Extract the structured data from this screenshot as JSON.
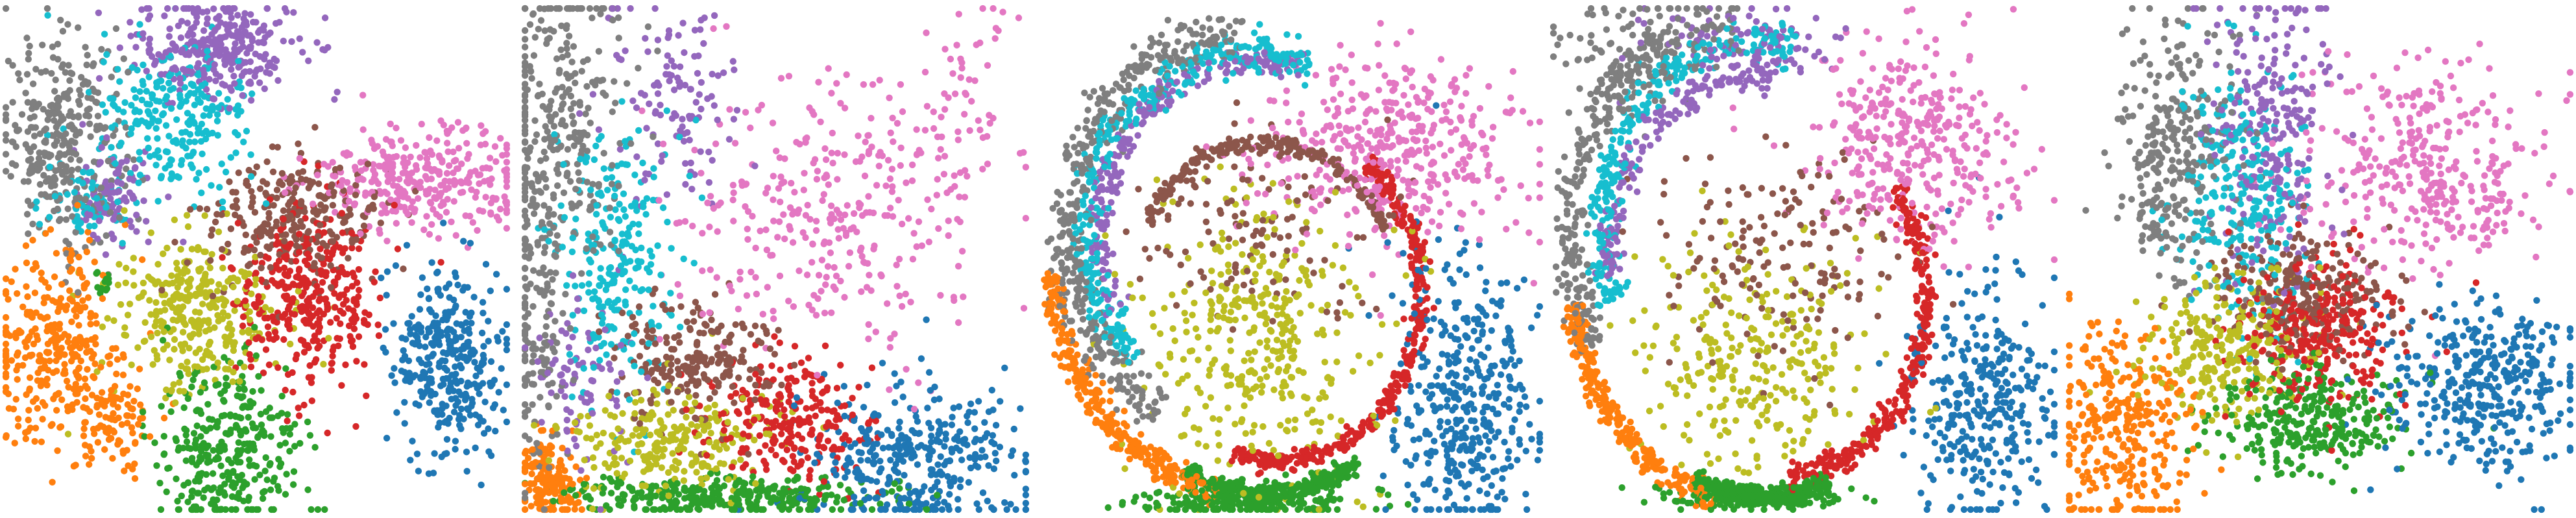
{
  "figure": {
    "panel_count": 5
  },
  "palette": {
    "c0": "#1f77b4",
    "c1": "#ff7f0e",
    "c2": "#2ca02c",
    "c3": "#d62728",
    "c4": "#9467bd",
    "c5": "#8c564b",
    "c6": "#e377c2",
    "c7": "#7f7f7f",
    "c8": "#bcbd22",
    "c9": "#17becf"
  },
  "chart_data": [
    {
      "type": "scatter",
      "xlim": [
        0,
        1
      ],
      "ylim": [
        0,
        1
      ],
      "axes_visible": false,
      "grid": false,
      "legend": "none",
      "clusters": [
        {
          "color": "c7",
          "cx": 0.12,
          "cy": 0.74,
          "sx": 0.06,
          "sy": 0.1,
          "n": 320
        },
        {
          "color": "c4",
          "cx": 0.42,
          "cy": 0.92,
          "sx": 0.08,
          "sy": 0.05,
          "n": 300
        },
        {
          "color": "c9",
          "cx": 0.34,
          "cy": 0.77,
          "sx": 0.08,
          "sy": 0.08,
          "n": 260
        },
        {
          "color": "c4",
          "cx": 0.22,
          "cy": 0.62,
          "sx": 0.04,
          "sy": 0.05,
          "n": 90
        },
        {
          "color": "c9",
          "cx": 0.16,
          "cy": 0.61,
          "sx": 0.04,
          "sy": 0.03,
          "n": 60
        },
        {
          "color": "c6",
          "cx": 0.83,
          "cy": 0.66,
          "sx": 0.11,
          "sy": 0.05,
          "n": 320
        },
        {
          "color": "c5",
          "cx": 0.58,
          "cy": 0.58,
          "sx": 0.09,
          "sy": 0.06,
          "n": 260
        },
        {
          "color": "c3",
          "cx": 0.6,
          "cy": 0.43,
          "sx": 0.07,
          "sy": 0.09,
          "n": 350
        },
        {
          "color": "c8",
          "cx": 0.38,
          "cy": 0.4,
          "sx": 0.08,
          "sy": 0.08,
          "n": 320
        },
        {
          "color": "c1",
          "cx": 0.1,
          "cy": 0.32,
          "sx": 0.07,
          "sy": 0.1,
          "n": 320
        },
        {
          "color": "c1",
          "cx": 0.22,
          "cy": 0.17,
          "sx": 0.04,
          "sy": 0.05,
          "n": 90
        },
        {
          "color": "c2",
          "cx": 0.44,
          "cy": 0.13,
          "sx": 0.07,
          "sy": 0.08,
          "n": 330
        },
        {
          "color": "c0",
          "cx": 0.88,
          "cy": 0.3,
          "sx": 0.06,
          "sy": 0.09,
          "n": 330
        },
        {
          "color": "c2",
          "cx": 0.2,
          "cy": 0.45,
          "sx": 0.01,
          "sy": 0.02,
          "n": 15
        }
      ]
    },
    {
      "type": "scatter",
      "xlim": [
        0,
        1
      ],
      "ylim": [
        0,
        1
      ],
      "axes_visible": false,
      "grid": false,
      "legend": "none",
      "clusters": [
        {
          "color": "c7",
          "cx": 0.07,
          "cy": 0.78,
          "sx": 0.07,
          "sy": 0.16,
          "n": 280
        },
        {
          "color": "c7",
          "cx": 0.03,
          "cy": 0.4,
          "sx": 0.03,
          "sy": 0.15,
          "n": 150
        },
        {
          "color": "c4",
          "cx": 0.28,
          "cy": 0.82,
          "sx": 0.07,
          "sy": 0.1,
          "n": 120
        },
        {
          "color": "c9",
          "cx": 0.18,
          "cy": 0.5,
          "sx": 0.06,
          "sy": 0.13,
          "n": 250
        },
        {
          "color": "c4",
          "cx": 0.12,
          "cy": 0.25,
          "sx": 0.05,
          "sy": 0.08,
          "n": 80
        },
        {
          "color": "c6",
          "cx": 0.62,
          "cy": 0.58,
          "sx": 0.16,
          "sy": 0.14,
          "n": 320
        },
        {
          "color": "c6",
          "cx": 0.85,
          "cy": 0.8,
          "sx": 0.06,
          "sy": 0.12,
          "n": 60
        },
        {
          "color": "c5",
          "cx": 0.33,
          "cy": 0.3,
          "sx": 0.08,
          "sy": 0.06,
          "n": 220
        },
        {
          "color": "c3",
          "cx": 0.52,
          "cy": 0.18,
          "sx": 0.08,
          "sy": 0.06,
          "n": 260
        },
        {
          "color": "c8",
          "cx": 0.3,
          "cy": 0.15,
          "sx": 0.1,
          "sy": 0.05,
          "n": 250
        },
        {
          "color": "c1",
          "cx": 0.05,
          "cy": 0.06,
          "sx": 0.03,
          "sy": 0.04,
          "n": 160
        },
        {
          "color": "c2",
          "cx": 0.4,
          "cy": 0.03,
          "sx": 0.16,
          "sy": 0.02,
          "n": 330
        },
        {
          "color": "c0",
          "cx": 0.78,
          "cy": 0.1,
          "sx": 0.11,
          "sy": 0.07,
          "n": 340
        }
      ]
    },
    {
      "type": "scatter",
      "xlim": [
        0,
        1
      ],
      "ylim": [
        0,
        1
      ],
      "axes_visible": false,
      "grid": false,
      "legend": "none",
      "rings": [
        {
          "color": "c7",
          "cx": 0.42,
          "cy": 0.55,
          "rx": 0.36,
          "ry": 0.4,
          "a0": 1.6,
          "a1": 4.2,
          "w": 0.06,
          "n": 420
        },
        {
          "color": "c9",
          "cx": 0.43,
          "cy": 0.55,
          "rx": 0.33,
          "ry": 0.36,
          "a0": 1.2,
          "a1": 3.9,
          "w": 0.05,
          "n": 360
        },
        {
          "color": "c4",
          "cx": 0.44,
          "cy": 0.55,
          "rx": 0.31,
          "ry": 0.34,
          "a0": 1.3,
          "a1": 3.6,
          "w": 0.04,
          "n": 200
        },
        {
          "color": "c5",
          "cx": 0.45,
          "cy": 0.45,
          "rx": 0.26,
          "ry": 0.28,
          "a0": 0.4,
          "a1": 2.7,
          "w": 0.03,
          "n": 220
        },
        {
          "color": "c3",
          "cx": 0.48,
          "cy": 0.43,
          "rx": 0.28,
          "ry": 0.33,
          "a0": -1.9,
          "a1": 0.9,
          "w": 0.03,
          "n": 380
        },
        {
          "color": "c1",
          "cx": 0.45,
          "cy": 0.5,
          "rx": 0.42,
          "ry": 0.47,
          "a0": 3.2,
          "a1": 4.5,
          "w": 0.03,
          "n": 300
        },
        {
          "color": "c2",
          "cx": 0.45,
          "cy": 0.5,
          "rx": 0.4,
          "ry": 0.46,
          "a0": 4.3,
          "a1": 5.2,
          "w": 0.02,
          "n": 330
        }
      ],
      "clusters": [
        {
          "color": "c8",
          "cx": 0.44,
          "cy": 0.35,
          "sx": 0.12,
          "sy": 0.14,
          "n": 380
        },
        {
          "color": "c5",
          "cx": 0.42,
          "cy": 0.55,
          "sx": 0.12,
          "sy": 0.1,
          "n": 120
        },
        {
          "color": "c6",
          "cx": 0.7,
          "cy": 0.72,
          "sx": 0.13,
          "sy": 0.09,
          "n": 420
        },
        {
          "color": "c0",
          "cx": 0.85,
          "cy": 0.22,
          "sx": 0.07,
          "sy": 0.14,
          "n": 400
        },
        {
          "color": "c2",
          "cx": 0.42,
          "cy": 0.02,
          "sx": 0.12,
          "sy": 0.015,
          "n": 200
        }
      ]
    },
    {
      "type": "scatter",
      "xlim": [
        0,
        1
      ],
      "ylim": [
        0,
        1
      ],
      "axes_visible": false,
      "grid": false,
      "legend": "none",
      "rings": [
        {
          "color": "c7",
          "cx": 0.38,
          "cy": 0.55,
          "rx": 0.34,
          "ry": 0.42,
          "a0": 1.6,
          "a1": 3.7,
          "w": 0.05,
          "n": 280
        },
        {
          "color": "c9",
          "cx": 0.4,
          "cy": 0.55,
          "rx": 0.3,
          "ry": 0.38,
          "a0": 1.3,
          "a1": 3.5,
          "w": 0.05,
          "n": 280
        },
        {
          "color": "c4",
          "cx": 0.4,
          "cy": 0.52,
          "rx": 0.28,
          "ry": 0.34,
          "a0": 1.4,
          "a1": 3.3,
          "w": 0.04,
          "n": 160
        },
        {
          "color": "c3",
          "cx": 0.48,
          "cy": 0.42,
          "rx": 0.26,
          "ry": 0.34,
          "a0": -1.6,
          "a1": 0.7,
          "w": 0.04,
          "n": 300
        },
        {
          "color": "c1",
          "cx": 0.4,
          "cy": 0.48,
          "rx": 0.36,
          "ry": 0.46,
          "a0": 3.3,
          "a1": 4.5,
          "w": 0.03,
          "n": 260
        },
        {
          "color": "c2",
          "cx": 0.42,
          "cy": 0.48,
          "rx": 0.34,
          "ry": 0.45,
          "a0": 4.3,
          "a1": 5.1,
          "w": 0.02,
          "n": 300
        }
      ],
      "clusters": [
        {
          "color": "c7",
          "cx": 0.16,
          "cy": 0.9,
          "sx": 0.08,
          "sy": 0.06,
          "n": 120
        },
        {
          "color": "c4",
          "cx": 0.4,
          "cy": 0.93,
          "sx": 0.1,
          "sy": 0.04,
          "n": 100
        },
        {
          "color": "c6",
          "cx": 0.72,
          "cy": 0.73,
          "sx": 0.1,
          "sy": 0.1,
          "n": 360
        },
        {
          "color": "c5",
          "cx": 0.46,
          "cy": 0.52,
          "sx": 0.12,
          "sy": 0.1,
          "n": 160
        },
        {
          "color": "c8",
          "cx": 0.4,
          "cy": 0.3,
          "sx": 0.12,
          "sy": 0.11,
          "n": 280
        },
        {
          "color": "c0",
          "cx": 0.86,
          "cy": 0.22,
          "sx": 0.07,
          "sy": 0.12,
          "n": 320
        },
        {
          "color": "c2",
          "cx": 0.38,
          "cy": 0.03,
          "sx": 0.09,
          "sy": 0.015,
          "n": 160
        }
      ]
    },
    {
      "type": "scatter",
      "xlim": [
        0,
        1
      ],
      "ylim": [
        0,
        1
      ],
      "axes_visible": false,
      "grid": false,
      "legend": "none",
      "clusters": [
        {
          "color": "c7",
          "cx": 0.21,
          "cy": 0.72,
          "sx": 0.06,
          "sy": 0.14,
          "n": 300
        },
        {
          "color": "c4",
          "cx": 0.4,
          "cy": 0.76,
          "sx": 0.06,
          "sy": 0.14,
          "n": 250
        },
        {
          "color": "c9",
          "cx": 0.34,
          "cy": 0.62,
          "sx": 0.06,
          "sy": 0.14,
          "n": 280
        },
        {
          "color": "c6",
          "cx": 0.72,
          "cy": 0.68,
          "sx": 0.12,
          "sy": 0.1,
          "n": 340
        },
        {
          "color": "c5",
          "cx": 0.46,
          "cy": 0.42,
          "sx": 0.09,
          "sy": 0.06,
          "n": 240
        },
        {
          "color": "c3",
          "cx": 0.5,
          "cy": 0.36,
          "sx": 0.08,
          "sy": 0.07,
          "n": 300
        },
        {
          "color": "c8",
          "cx": 0.33,
          "cy": 0.32,
          "sx": 0.08,
          "sy": 0.07,
          "n": 260
        },
        {
          "color": "c1",
          "cx": 0.11,
          "cy": 0.16,
          "sx": 0.07,
          "sy": 0.1,
          "n": 320
        },
        {
          "color": "c2",
          "cx": 0.48,
          "cy": 0.18,
          "sx": 0.1,
          "sy": 0.05,
          "n": 300
        },
        {
          "color": "c0",
          "cx": 0.82,
          "cy": 0.26,
          "sx": 0.1,
          "sy": 0.08,
          "n": 360
        }
      ]
    }
  ]
}
